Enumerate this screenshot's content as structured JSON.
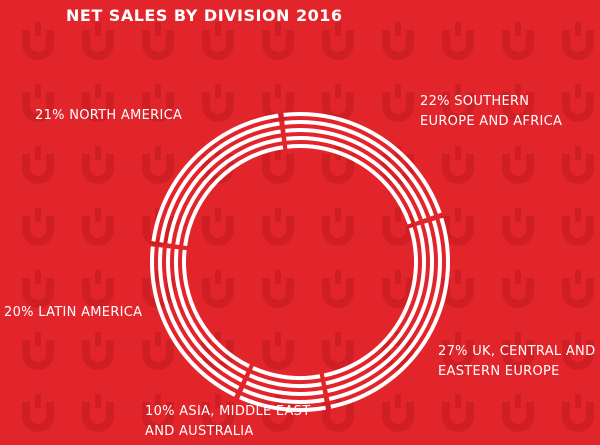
{
  "chart_data": {
    "type": "ring",
    "title": "NET SALES BY DIVISION 2016",
    "categories": [
      "NORTH AMERICA",
      "SOUTHERN EUROPE AND AFRICA",
      "UK, CENTRAL AND EASTERN EUROPE",
      "ASIA, MIDDLE EAST AND AUSTRALIA",
      "LATIN AMERICA"
    ],
    "values": [
      21,
      22,
      27,
      10,
      20
    ],
    "value_labels": [
      "21%",
      "22%",
      "27%",
      "10%",
      "20%"
    ],
    "color": "#ffffff"
  }
}
